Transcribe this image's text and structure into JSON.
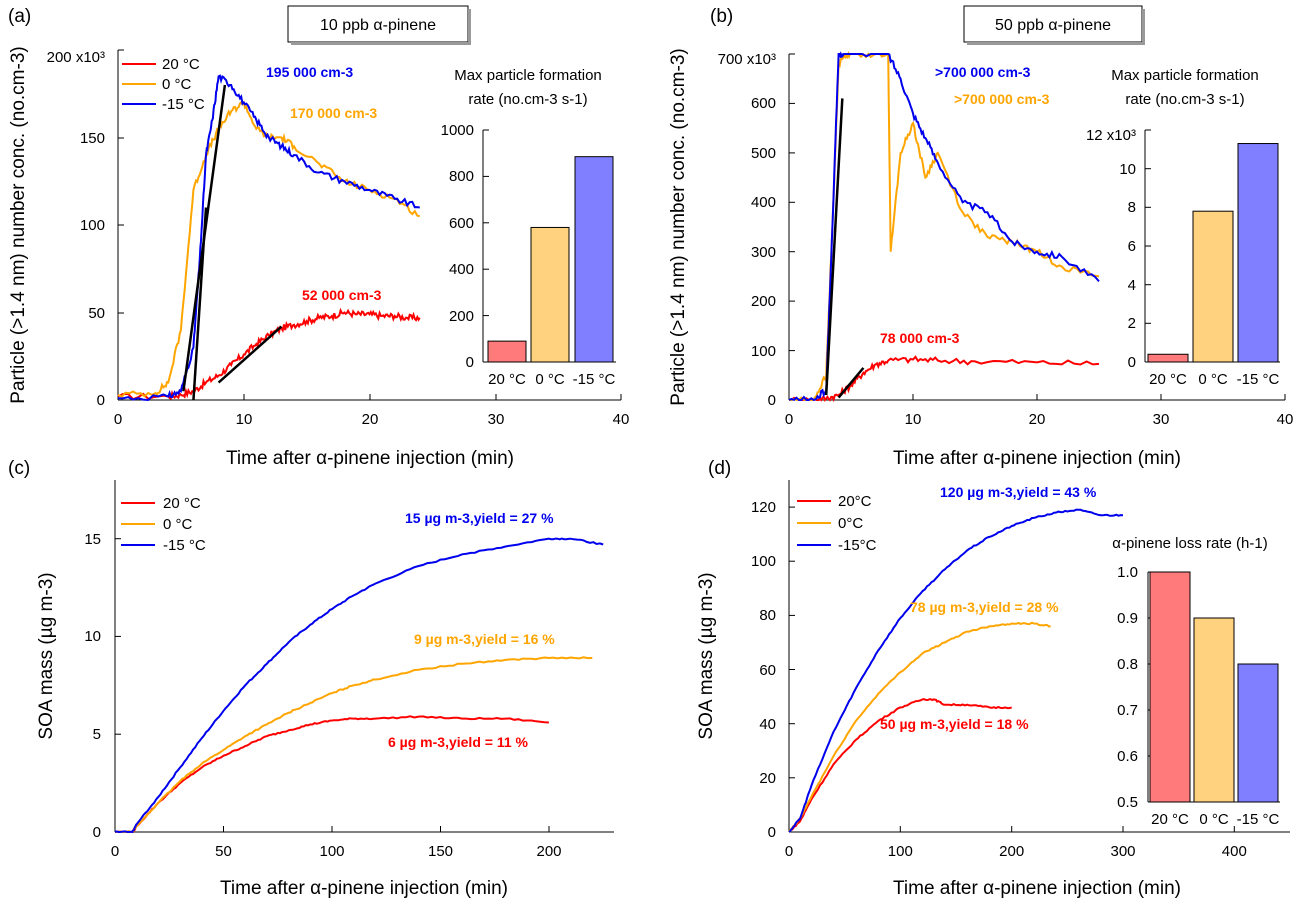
{
  "figure": {
    "panels": [
      {
        "letter": "(a)",
        "box_title": "10 ppb α-pinene",
        "xlabel": "Time after α-pinene injection (min)",
        "ylabel": "Particle (>1.4 nm) number conc. (no.cm-3)",
        "ytick_labels": [
          "0",
          "50",
          "100",
          "150",
          "200 x10³"
        ],
        "xtick_labels": [
          "0",
          "10",
          "20",
          "30",
          "40"
        ],
        "legend": [
          "20 °C",
          "0 °C",
          "-15 °C"
        ],
        "annotations": [
          "195 000 cm-3",
          "170 000 cm-3",
          "52 000 cm-3"
        ],
        "inset_title": [
          "Max particle formation",
          "rate (no.cm-3 s-1)"
        ],
        "inset_ytick_labels": [
          "0",
          "200",
          "400",
          "600",
          "800",
          "1000"
        ],
        "inset_categories": [
          "20 °C",
          "0 °C",
          "-15 °C"
        ]
      },
      {
        "letter": "(b)",
        "box_title": "50 ppb α-pinene",
        "xlabel": "Time after α-pinene injection (min)",
        "ylabel": "Particle (>1.4 nm) number conc. (no.cm-3)",
        "ytick_labels": [
          "0",
          "100",
          "200",
          "300",
          "400",
          "500",
          "600",
          "700 x10³"
        ],
        "xtick_labels": [
          "0",
          "10",
          "20",
          "30",
          "40"
        ],
        "annotations": [
          ">700 000 cm-3",
          ">700 000 cm-3",
          "78 000 cm-3"
        ],
        "inset_title": [
          "Max particle formation",
          "rate (no.cm-3 s-1)"
        ],
        "inset_ytick_labels": [
          "0",
          "2",
          "4",
          "6",
          "8",
          "10",
          "12 x10³"
        ],
        "inset_categories": [
          "20 °C",
          "0 °C",
          "-15 °C"
        ]
      },
      {
        "letter": "(c)",
        "xlabel": "Time after α-pinene injection (min)",
        "ylabel": "SOA mass (µg m-3)",
        "ytick_labels": [
          "0",
          "5",
          "10",
          "15"
        ],
        "xtick_labels": [
          "0",
          "50",
          "100",
          "150",
          "200"
        ],
        "legend": [
          "20 °C",
          "0 °C",
          "-15 °C"
        ],
        "annotations": [
          "15 µg m-3,yield = 27 %",
          "9 µg m-3,yield = 16 %",
          "6 µg m-3,yield = 11 %"
        ]
      },
      {
        "letter": "(d)",
        "xlabel": "Time after α-pinene injection (min)",
        "ylabel": "SOA mass (µg m-3)",
        "ytick_labels": [
          "0",
          "20",
          "40",
          "60",
          "80",
          "100",
          "120"
        ],
        "xtick_labels": [
          "0",
          "100",
          "200",
          "300",
          "400"
        ],
        "legend": [
          "20°C",
          "0°C",
          "-15°C"
        ],
        "annotations": [
          "120 µg m-3,yield = 43 %",
          "78 µg m-3,yield = 28 %",
          "50 µg m-3,yield = 18 %"
        ],
        "inset_title": [
          "α-pinene loss rate (h-1)"
        ],
        "inset_ytick_labels": [
          "0.5",
          "0.6",
          "0.7",
          "0.8",
          "0.9",
          "1.0"
        ],
        "inset_categories": [
          "20 °C",
          "0 °C",
          "-15 °C"
        ]
      }
    ]
  },
  "chart_data": [
    {
      "type": "line",
      "panel": "(a)",
      "title": "10 ppb α-pinene",
      "xlabel": "Time after α-pinene injection (min)",
      "ylabel": "Particle (>1.4 nm) number conc. (no.cm-3)",
      "xlim": [
        0,
        40
      ],
      "ylim": [
        0,
        200000
      ],
      "series": [
        {
          "name": "20 °C",
          "color": "#ff0000",
          "x": [
            0,
            4,
            5,
            6,
            7,
            8,
            9,
            10,
            11,
            12,
            13,
            14,
            15,
            16,
            17,
            18,
            19,
            20,
            21,
            22,
            23,
            24
          ],
          "y": [
            2000,
            2000,
            3000,
            5000,
            10000,
            14000,
            20000,
            26000,
            32000,
            37000,
            41000,
            43000,
            45000,
            47000,
            48000,
            50000,
            49000,
            49000,
            48000,
            48000,
            47000,
            47000
          ]
        },
        {
          "name": "0 °C",
          "color": "#ffa500",
          "x": [
            0,
            3,
            4,
            5,
            6,
            7,
            8,
            9,
            10,
            11,
            12,
            13,
            14,
            16,
            18,
            20,
            22,
            24
          ],
          "y": [
            3000,
            4000,
            10000,
            40000,
            120000,
            140000,
            155000,
            165000,
            170000,
            155000,
            150000,
            150000,
            145000,
            135000,
            125000,
            120000,
            115000,
            105000
          ]
        },
        {
          "name": "-15 °C",
          "color": "#0000ee",
          "x": [
            0,
            4,
            5,
            6,
            6.5,
            7,
            7.5,
            8,
            9,
            10,
            11,
            12,
            13,
            14,
            16,
            18,
            20,
            22,
            24
          ],
          "y": [
            1000,
            2000,
            5000,
            30000,
            80000,
            140000,
            160000,
            185000,
            180000,
            170000,
            160000,
            150000,
            145000,
            140000,
            130000,
            125000,
            120000,
            115000,
            110000
          ]
        }
      ],
      "fits": [
        {
          "x": [
            5.2,
            8.5
          ],
          "y": [
            5000,
            180000
          ]
        },
        {
          "x": [
            6,
            7
          ],
          "y": [
            0,
            110000
          ]
        },
        {
          "x": [
            8,
            13
          ],
          "y": [
            10000,
            42000
          ]
        }
      ],
      "annotations": [
        {
          "text": "195 000 cm-3",
          "color": "#0000ee"
        },
        {
          "text": "170 000 cm-3",
          "color": "#ffa500"
        },
        {
          "text": "52 000 cm-3",
          "color": "#ff0000"
        }
      ],
      "inset": {
        "type": "bar",
        "title": "Max particle formation rate (no.cm-3 s-1)",
        "categories": [
          "20 °C",
          "0 °C",
          "-15 °C"
        ],
        "values": [
          90,
          580,
          885
        ],
        "colors": [
          "#ff7a7a",
          "#ffd27f",
          "#7f7fff"
        ],
        "ylim": [
          0,
          1000
        ]
      }
    },
    {
      "type": "line",
      "panel": "(b)",
      "title": "50 ppb α-pinene",
      "xlabel": "Time after α-pinene injection (min)",
      "ylabel": "Particle (>1.4 nm) number conc. (no.cm-3)",
      "xlim": [
        0,
        40
      ],
      "ylim": [
        0,
        700000
      ],
      "series": [
        {
          "name": "20 °C",
          "color": "#ff0000",
          "x": [
            0,
            2,
            3,
            4,
            5,
            6,
            7,
            8,
            10,
            12,
            15,
            20,
            25
          ],
          "y": [
            0,
            0,
            3000,
            10000,
            30000,
            55000,
            72000,
            80000,
            82000,
            80000,
            78000,
            76000,
            73000
          ]
        },
        {
          "name": "0 °C",
          "color": "#ffa500",
          "x": [
            0,
            2,
            3,
            3.5,
            4,
            4.5,
            5,
            7,
            8,
            8.2,
            9,
            10,
            11,
            12,
            14,
            16,
            18,
            20,
            22,
            25
          ],
          "y": [
            0,
            0,
            50000,
            350000,
            680000,
            700000,
            700000,
            700000,
            700000,
            300000,
            500000,
            560000,
            450000,
            500000,
            380000,
            330000,
            320000,
            300000,
            270000,
            250000
          ]
        },
        {
          "name": "-15 °C",
          "color": "#0000ee",
          "x": [
            0,
            2,
            3,
            3.5,
            4,
            4.5,
            8,
            9,
            10,
            11,
            12,
            14,
            16,
            18,
            20,
            22,
            25
          ],
          "y": [
            0,
            0,
            20000,
            350000,
            700000,
            700000,
            700000,
            650000,
            580000,
            530000,
            480000,
            400000,
            380000,
            320000,
            300000,
            290000,
            240000
          ]
        }
      ],
      "fits": [
        {
          "x": [
            3,
            4.3
          ],
          "y": [
            10000,
            610000
          ]
        },
        {
          "x": [
            4,
            6
          ],
          "y": [
            5000,
            65000
          ]
        }
      ],
      "annotations": [
        {
          "text": ">700 000 cm-3",
          "color": "#0000ee"
        },
        {
          "text": ">700 000 cm-3",
          "color": "#ffa500"
        },
        {
          "text": "78 000 cm-3",
          "color": "#ff0000"
        }
      ],
      "inset": {
        "type": "bar",
        "title": "Max particle formation rate (no.cm-3 s-1)",
        "categories": [
          "20 °C",
          "0 °C",
          "-15 °C"
        ],
        "values": [
          400,
          7800,
          11300
        ],
        "colors": [
          "#ff7a7a",
          "#ffd27f",
          "#7f7fff"
        ],
        "ylim": [
          0,
          12000
        ]
      }
    },
    {
      "type": "line",
      "panel": "(c)",
      "xlabel": "Time after α-pinene injection (min)",
      "ylabel": "SOA mass (µg m-3)",
      "xlim": [
        0,
        230
      ],
      "ylim": [
        0,
        18
      ],
      "series": [
        {
          "name": "20 °C",
          "color": "#ff0000",
          "x": [
            0,
            8,
            10,
            20,
            30,
            40,
            50,
            60,
            70,
            80,
            90,
            100,
            110,
            120,
            140,
            160,
            180,
            200
          ],
          "y": [
            0,
            0,
            0.3,
            1.5,
            2.5,
            3.3,
            3.9,
            4.4,
            4.9,
            5.2,
            5.5,
            5.7,
            5.8,
            5.8,
            5.9,
            5.8,
            5.8,
            5.6
          ]
        },
        {
          "name": "0 °C",
          "color": "#ffa500",
          "x": [
            0,
            8,
            10,
            20,
            30,
            40,
            50,
            60,
            70,
            80,
            90,
            100,
            110,
            120,
            140,
            160,
            180,
            200,
            220
          ],
          "y": [
            0,
            0,
            0.3,
            1.5,
            2.6,
            3.5,
            4.2,
            4.9,
            5.5,
            6.1,
            6.6,
            7.1,
            7.5,
            7.8,
            8.3,
            8.6,
            8.8,
            8.9,
            8.9
          ]
        },
        {
          "name": "-15 °C",
          "color": "#0000ee",
          "x": [
            0,
            8,
            10,
            20,
            30,
            40,
            50,
            60,
            70,
            80,
            90,
            100,
            110,
            120,
            140,
            160,
            180,
            200,
            210,
            225
          ],
          "y": [
            0,
            0,
            0.4,
            1.8,
            3.3,
            4.8,
            6.2,
            7.5,
            8.6,
            9.7,
            10.6,
            11.4,
            12.1,
            12.7,
            13.6,
            14.2,
            14.6,
            15.0,
            15.0,
            14.7
          ]
        }
      ],
      "annotations": [
        {
          "text": "15 µg m-3,yield = 27 %",
          "color": "#0000ee"
        },
        {
          "text": "9 µg m-3,yield = 16 %",
          "color": "#ffa500"
        },
        {
          "text": "6 µg m-3,yield = 11 %",
          "color": "#ff0000"
        }
      ]
    },
    {
      "type": "line",
      "panel": "(d)",
      "xlabel": "Time after α-pinene injection (min)",
      "ylabel": "SOA mass (µg m-3)",
      "xlim": [
        0,
        450
      ],
      "ylim": [
        0,
        130
      ],
      "series": [
        {
          "name": "20°C",
          "color": "#ff0000",
          "x": [
            0,
            10,
            20,
            40,
            60,
            80,
            100,
            120,
            130,
            140,
            160,
            180,
            200
          ],
          "y": [
            0,
            4,
            12,
            25,
            34,
            41,
            46,
            49,
            49,
            47,
            47,
            46,
            46
          ]
        },
        {
          "name": "0°C",
          "color": "#ffa500",
          "x": [
            0,
            10,
            20,
            40,
            60,
            80,
            100,
            120,
            140,
            160,
            180,
            200,
            220,
            235
          ],
          "y": [
            0,
            5,
            13,
            28,
            41,
            51,
            59,
            66,
            70,
            74,
            76,
            77,
            77,
            76
          ]
        },
        {
          "name": "-15°C",
          "color": "#0000ee",
          "x": [
            0,
            10,
            20,
            40,
            60,
            80,
            100,
            120,
            140,
            160,
            180,
            200,
            220,
            240,
            260,
            280,
            300
          ],
          "y": [
            0,
            5,
            17,
            37,
            53,
            67,
            79,
            89,
            97,
            104,
            109,
            113,
            116,
            118,
            119,
            117,
            117
          ]
        }
      ],
      "annotations": [
        {
          "text": "120 µg m-3,yield = 43 %",
          "color": "#0000ee"
        },
        {
          "text": "78 µg m-3,yield = 28 %",
          "color": "#ffa500"
        },
        {
          "text": "50 µg m-3,yield = 18 %",
          "color": "#ff0000"
        }
      ],
      "inset": {
        "type": "bar",
        "title": "α-pinene loss rate (h-1)",
        "categories": [
          "20 °C",
          "0 °C",
          "-15 °C"
        ],
        "values": [
          1.0,
          0.9,
          0.8
        ],
        "colors": [
          "#ff7a7a",
          "#ffd27f",
          "#7f7fff"
        ],
        "ylim": [
          0.5,
          1.0
        ]
      }
    }
  ]
}
